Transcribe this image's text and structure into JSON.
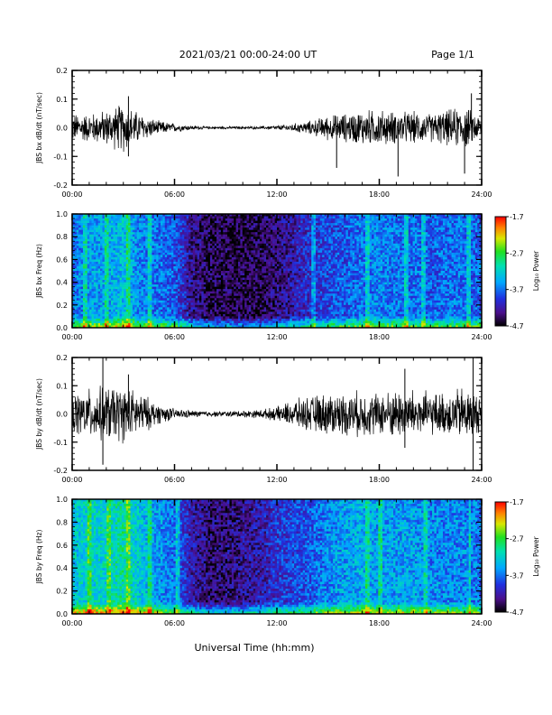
{
  "header": {
    "date_range": "2021/03/21  00:00-24:00 UT",
    "page": "Page 1/1"
  },
  "footer": {
    "xlabel": "Universal Time (hh:mm)"
  },
  "chart_data": [
    {
      "type": "line",
      "ylabel": "JBS bx dB/dt (nT/sec)",
      "ylim": [
        -0.2,
        0.2
      ],
      "yticks": [
        "0.2",
        "0.1",
        "0.0",
        "-0.1",
        "-0.2"
      ],
      "xlim": [
        0,
        24
      ],
      "xticks": [
        "00:00",
        "06:00",
        "12:00",
        "18:00",
        "24:00"
      ],
      "series": [
        {
          "x": [
            0,
            1,
            2,
            3,
            4,
            5,
            6,
            7,
            8,
            9,
            10,
            11,
            12,
            13,
            14,
            15,
            16,
            17,
            18,
            19,
            20,
            21,
            22,
            23,
            24
          ],
          "amplitude": [
            0.04,
            0.04,
            0.05,
            0.07,
            0.04,
            0.02,
            0.012,
            0.006,
            0.004,
            0.004,
            0.004,
            0.004,
            0.006,
            0.012,
            0.02,
            0.035,
            0.04,
            0.05,
            0.05,
            0.045,
            0.045,
            0.04,
            0.05,
            0.06,
            0.03
          ]
        }
      ],
      "spikes": [
        {
          "x": 3.3,
          "y": 0.11
        },
        {
          "x": 3.3,
          "y": -0.1
        },
        {
          "x": 15.5,
          "y": -0.14
        },
        {
          "x": 19.1,
          "y": -0.17
        },
        {
          "x": 23.0,
          "y": -0.16
        },
        {
          "x": 23.4,
          "y": 0.12
        }
      ]
    },
    {
      "type": "heatmap",
      "ylabel": "JBS bx Freq (Hz)",
      "ylim": [
        0.0,
        1.0
      ],
      "yticks": [
        "1.0",
        "0.8",
        "0.6",
        "0.4",
        "0.2",
        "0.0"
      ],
      "xlim": [
        0,
        24
      ],
      "xticks": [
        "00:00",
        "06:00",
        "12:00",
        "18:00",
        "24:00"
      ],
      "colorbar": {
        "label": "Log₁₀ Power",
        "ticks": [
          "-1.7",
          "-2.7",
          "-3.7",
          "-4.7"
        ],
        "range": [
          -4.7,
          -1.7
        ]
      },
      "hourly_power": [
        -3.7,
        -3.5,
        -3.5,
        -3.3,
        -3.6,
        -3.7,
        -3.8,
        -4.3,
        -4.5,
        -4.5,
        -4.5,
        -4.5,
        -4.4,
        -4.2,
        -4.0,
        -3.9,
        -3.8,
        -3.7,
        -3.6,
        -3.7,
        -3.7,
        -3.8,
        -3.7,
        -3.7,
        -3.8
      ],
      "bright_streaks": [
        0.8,
        2.0,
        3.3,
        4.6,
        14.2,
        17.3,
        19.6,
        20.6,
        23.2
      ]
    },
    {
      "type": "line",
      "ylabel": "JBS by dB/dt (nT/sec)",
      "ylim": [
        -0.2,
        0.2
      ],
      "yticks": [
        "0.2",
        "0.1",
        "0.0",
        "-0.1",
        "-0.2"
      ],
      "xlim": [
        0,
        24
      ],
      "xticks": [
        "00:00",
        "06:00",
        "12:00",
        "18:00",
        "24:00"
      ],
      "series": [
        {
          "x": [
            0,
            1,
            2,
            3,
            4,
            5,
            6,
            7,
            8,
            9,
            10,
            11,
            12,
            13,
            14,
            15,
            16,
            17,
            18,
            19,
            20,
            21,
            22,
            23,
            24
          ],
          "amplitude": [
            0.06,
            0.07,
            0.08,
            0.08,
            0.06,
            0.03,
            0.015,
            0.01,
            0.008,
            0.008,
            0.01,
            0.012,
            0.02,
            0.04,
            0.05,
            0.06,
            0.06,
            0.065,
            0.06,
            0.07,
            0.07,
            0.06,
            0.06,
            0.08,
            0.05
          ]
        }
      ],
      "spikes": [
        {
          "x": 1.8,
          "y": 0.2
        },
        {
          "x": 1.8,
          "y": -0.18
        },
        {
          "x": 3.3,
          "y": 0.14
        },
        {
          "x": 19.5,
          "y": 0.16
        },
        {
          "x": 19.5,
          "y": -0.12
        },
        {
          "x": 23.5,
          "y": 0.2
        },
        {
          "x": 23.5,
          "y": -0.2
        }
      ]
    },
    {
      "type": "heatmap",
      "ylabel": "JBS by Freq (Hz)",
      "ylim": [
        0.0,
        1.0
      ],
      "yticks": [
        "1.0",
        "0.8",
        "0.6",
        "0.4",
        "0.2",
        "0.0"
      ],
      "xlim": [
        0,
        24
      ],
      "xticks": [
        "00:00",
        "06:00",
        "12:00",
        "18:00",
        "24:00"
      ],
      "colorbar": {
        "label": "Log₁₀ Power",
        "ticks": [
          "-1.7",
          "-2.7",
          "-3.7",
          "-4.7"
        ],
        "range": [
          -4.7,
          -1.7
        ]
      },
      "hourly_power": [
        -3.3,
        -3.2,
        -3.2,
        -3.0,
        -3.3,
        -3.5,
        -3.7,
        -4.2,
        -4.4,
        -4.4,
        -4.3,
        -4.2,
        -4.0,
        -3.9,
        -3.8,
        -3.6,
        -3.5,
        -3.4,
        -3.5,
        -3.5,
        -3.5,
        -3.6,
        -3.6,
        -3.6,
        -3.7
      ],
      "bright_streaks": [
        1.0,
        2.1,
        3.3,
        4.5,
        6.2,
        17.3,
        18.1,
        20.7,
        23.3
      ]
    }
  ]
}
